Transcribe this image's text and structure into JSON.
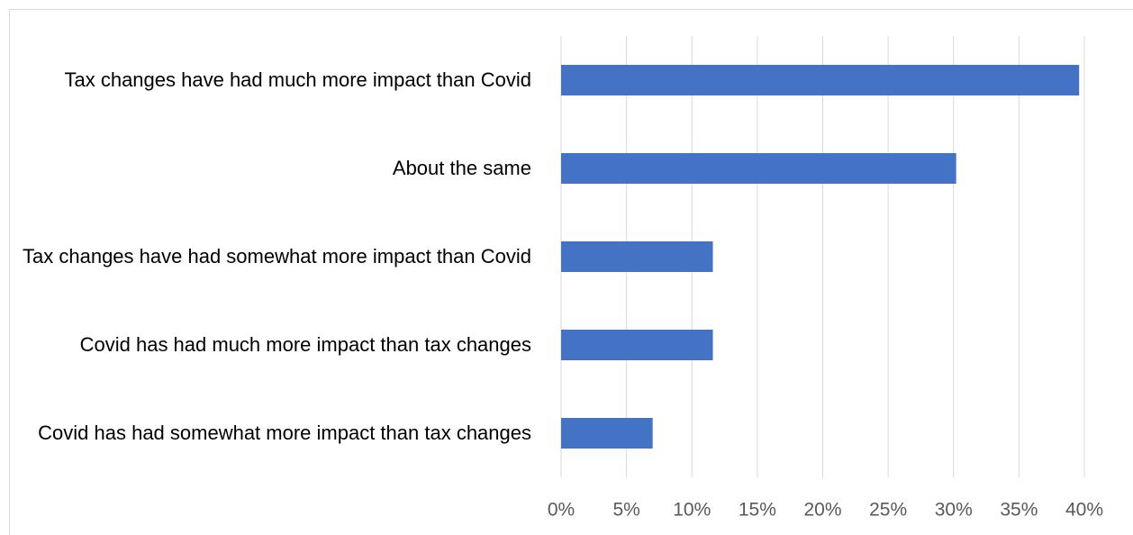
{
  "chart_data": {
    "type": "bar",
    "orientation": "horizontal",
    "categories": [
      "Tax changes have had much more impact than Covid",
      "About the same",
      "Tax changes have had somewhat more impact than Covid",
      "Covid has had much more impact than tax changes",
      "Covid has had somewhat more impact than tax changes"
    ],
    "values": [
      39.6,
      30.2,
      11.6,
      11.6,
      7.0
    ],
    "color": "#4472c4",
    "xlim": [
      0,
      40
    ],
    "xticks": [
      {
        "value": 0,
        "label": "0%"
      },
      {
        "value": 5,
        "label": "5%"
      },
      {
        "value": 10,
        "label": "10%"
      },
      {
        "value": 15,
        "label": "15%"
      },
      {
        "value": 20,
        "label": "20%"
      },
      {
        "value": 25,
        "label": "25%"
      },
      {
        "value": 30,
        "label": "30%"
      },
      {
        "value": 35,
        "label": "35%"
      },
      {
        "value": 40,
        "label": "40%"
      }
    ],
    "grid": true
  }
}
